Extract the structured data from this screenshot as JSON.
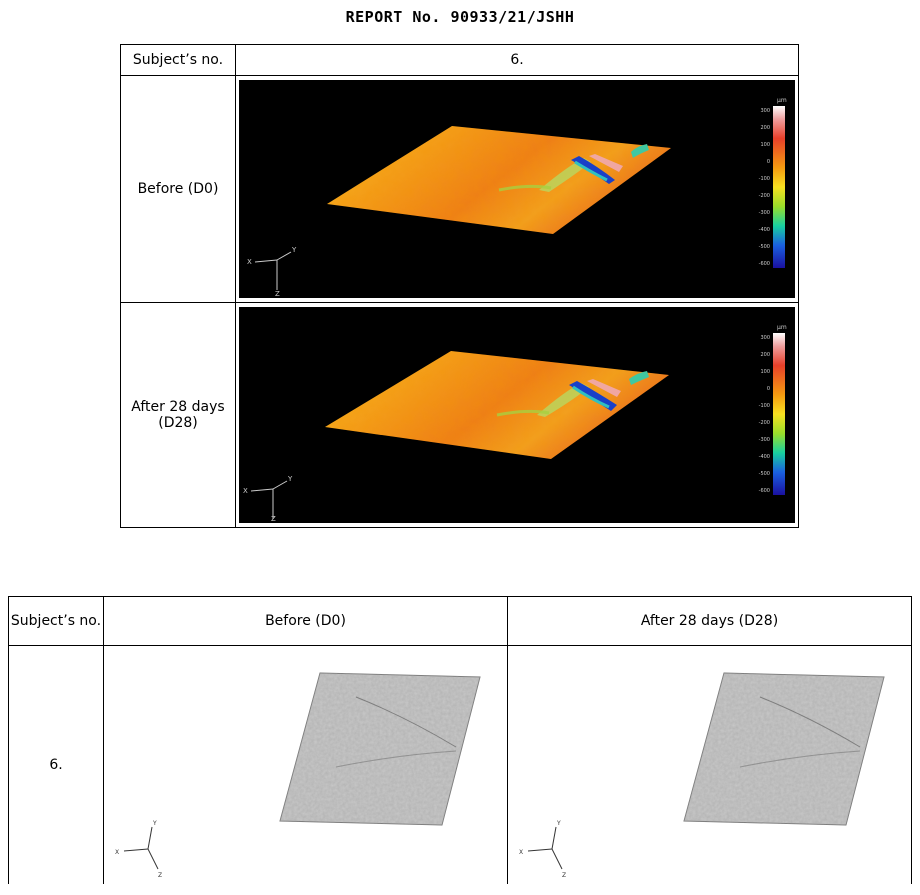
{
  "report_title": "REPORT No. 90933/21/JSHH",
  "table1": {
    "header_label": "Subject’s no.",
    "header_value": "6.",
    "rows": [
      {
        "label": "Before (D0)"
      },
      {
        "label": "After 28 days (D28)"
      }
    ],
    "scale": {
      "unit": "µm",
      "ticks": [
        "300",
        "200",
        "100",
        "0",
        "-100",
        "-200",
        "-300",
        "-400",
        "-500",
        "-600"
      ]
    },
    "axes": [
      "X",
      "Y",
      "Z"
    ]
  },
  "table2": {
    "col_subject": "Subject’s no.",
    "col_before": "Before (D0)",
    "col_after": "After 28 days (D28)",
    "subject_value": "6.",
    "axes": [
      "X",
      "Y",
      "Z"
    ]
  }
}
